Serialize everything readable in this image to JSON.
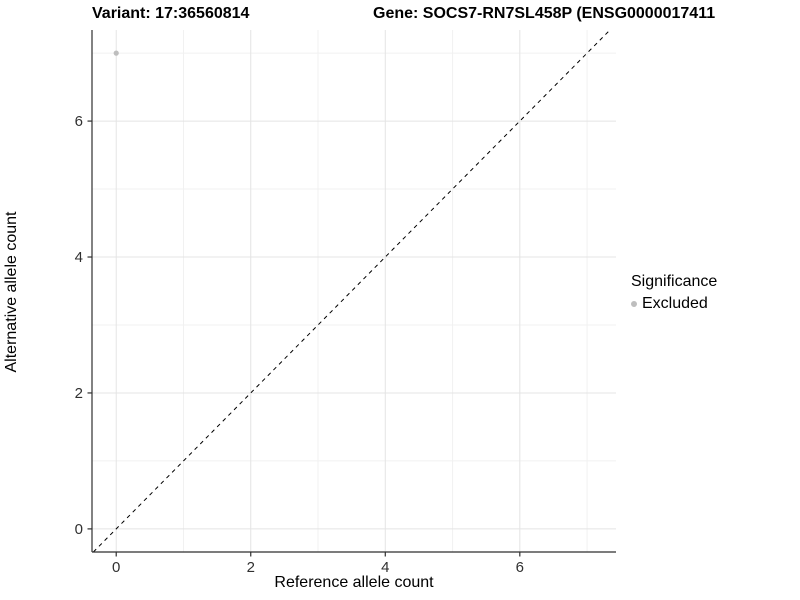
{
  "title": {
    "variant": "Variant: 17:36560814",
    "gene": "Gene: SOCS7-RN7SL458P (ENSG0000017411"
  },
  "chart_data": {
    "type": "scatter",
    "title": "Variant: 17:36560814  Gene: SOCS7-RN7SL458P (ENSG0000017411",
    "xlabel": "Reference allele count",
    "ylabel": "Alternative allele count",
    "x_ticks": [
      0,
      2,
      4,
      6
    ],
    "y_ticks": [
      0,
      2,
      4,
      6
    ],
    "x_minor_ticks": [
      1,
      3,
      5,
      7
    ],
    "y_minor_ticks": [
      1,
      3,
      5,
      7
    ],
    "xlim": [
      -0.36,
      7.43
    ],
    "ylim": [
      -0.34,
      7.34
    ],
    "grid": true,
    "points": [
      {
        "x": 0,
        "y": 7,
        "series": "Excluded"
      }
    ],
    "reference_line": {
      "type": "identity",
      "style": "dashed",
      "color": "#000000"
    },
    "legend": {
      "position": "right",
      "title": "Significance",
      "entries": [
        {
          "label": "Excluded",
          "color": "#bebebe"
        }
      ]
    }
  },
  "colors": {
    "background": "#ffffff",
    "axis_line": "#2f2f2f",
    "tick_label": "#303030",
    "grid_major": "#e4e4e4",
    "grid_minor": "#f1f1f1",
    "point": "#bebebe"
  }
}
